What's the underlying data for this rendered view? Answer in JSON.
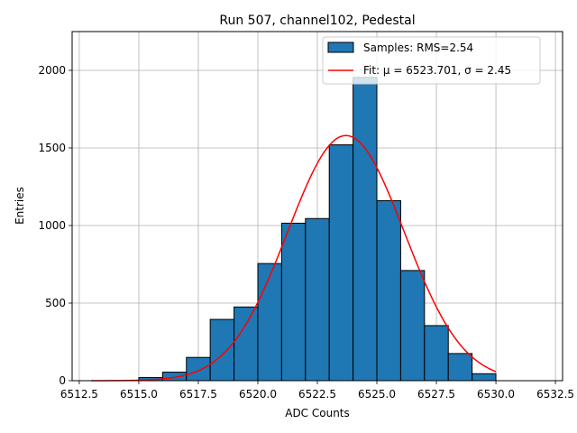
{
  "chart_data": {
    "type": "bar",
    "title": "Run 507, channel102, Pedestal",
    "xlabel": "ADC Counts",
    "ylabel": "Entries",
    "xlim": [
      6512.2,
      6532.8
    ],
    "ylim": [
      0,
      2250
    ],
    "x_ticks": [
      6512.5,
      6515.0,
      6517.5,
      6520.0,
      6522.5,
      6525.0,
      6527.5,
      6530.0,
      6532.5
    ],
    "x_tick_labels": [
      "6512.5",
      "6515.0",
      "6517.5",
      "6520.0",
      "6522.5",
      "6525.0",
      "6527.5",
      "6530.0",
      "6532.5"
    ],
    "y_ticks": [
      0,
      500,
      1000,
      1500,
      2000
    ],
    "y_tick_labels": [
      "0",
      "500",
      "1000",
      "1500",
      "2000"
    ],
    "grid": true,
    "legend_position": "top-right",
    "bins": [
      {
        "x0": 6515,
        "x1": 6516,
        "count": 20
      },
      {
        "x0": 6516,
        "x1": 6517,
        "count": 55
      },
      {
        "x0": 6517,
        "x1": 6518,
        "count": 150
      },
      {
        "x0": 6518,
        "x1": 6519,
        "count": 395
      },
      {
        "x0": 6519,
        "x1": 6520,
        "count": 475
      },
      {
        "x0": 6520,
        "x1": 6521,
        "count": 755
      },
      {
        "x0": 6521,
        "x1": 6522,
        "count": 1015
      },
      {
        "x0": 6522,
        "x1": 6523,
        "count": 1045
      },
      {
        "x0": 6523,
        "x1": 6524,
        "count": 1520
      },
      {
        "x0": 6524,
        "x1": 6525,
        "count": 1955
      },
      {
        "x0": 6525,
        "x1": 6526,
        "count": 1160
      },
      {
        "x0": 6526,
        "x1": 6527,
        "count": 710
      },
      {
        "x0": 6527,
        "x1": 6528,
        "count": 355
      },
      {
        "x0": 6528,
        "x1": 6529,
        "count": 175
      },
      {
        "x0": 6529,
        "x1": 6530,
        "count": 45
      }
    ],
    "fit": {
      "mu": 6523.701,
      "sigma": 2.45,
      "amplitude": 1580,
      "x_range": [
        6513,
        6530
      ]
    },
    "series": [
      {
        "name": "Samples: RMS=2.54",
        "kind": "histogram",
        "color": "#1f77b4"
      },
      {
        "name": "Fit: μ = 6523.701, σ = 2.45",
        "kind": "line",
        "color": "#ff0000"
      }
    ]
  }
}
